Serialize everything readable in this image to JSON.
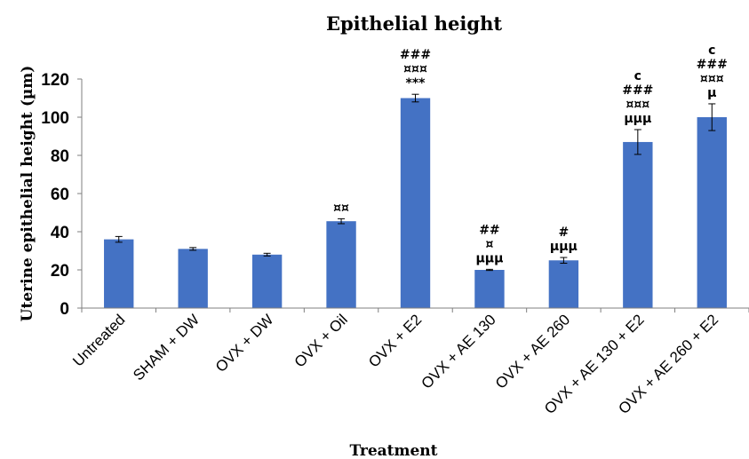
{
  "chart_data": {
    "type": "bar",
    "title": "Epithelial height",
    "xlabel": "Treatment",
    "ylabel": "Uterine epithelial height (µm)",
    "ylim": [
      0,
      120
    ],
    "yticks": [
      0,
      20,
      40,
      60,
      80,
      100,
      120
    ],
    "grid": false,
    "legend": "none",
    "bar_color": "#4472C4",
    "categories": [
      "Untreated",
      "SHAM + DW",
      "OVX + DW",
      "OVX + Oil",
      "OVX + E2",
      "OVX + AE 130",
      "OVX + AE 260",
      "OVX + AE 130 + E2",
      "OVX + AE 260 + E2"
    ],
    "values": [
      36,
      31,
      28,
      45.5,
      110,
      20,
      25,
      87,
      100
    ],
    "errors": [
      1.5,
      0.7,
      0.7,
      1.3,
      2,
      0.3,
      1.5,
      6.5,
      7
    ],
    "annotations": [
      [],
      [],
      [],
      [
        "¤¤"
      ],
      [
        "###",
        "¤¤¤",
        "***"
      ],
      [
        "##",
        "¤",
        "µµµ"
      ],
      [
        "#",
        "µµµ"
      ],
      [
        "c",
        "###",
        "¤¤¤",
        "µµµ"
      ],
      [
        "c",
        "###",
        "¤¤¤",
        "µ"
      ]
    ]
  }
}
